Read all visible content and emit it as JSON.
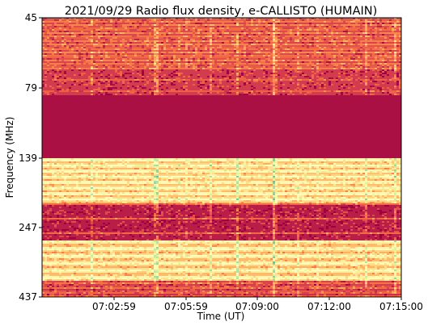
{
  "chart_data": {
    "type": "heatmap",
    "title": "2021/09/29  Radio flux density, e-CALLISTO (HUMAIN)",
    "xlabel": "Time (UT)",
    "ylabel": "Frequency (MHz)",
    "x_ticks": [
      "07:02:59",
      "07:05:59",
      "07:09:00",
      "07:12:00",
      "07:15:00"
    ],
    "x_range": [
      "07:00:00",
      "07:15:00"
    ],
    "y_ticks": [
      45,
      79,
      139,
      247,
      437
    ],
    "y_range": [
      45,
      437
    ],
    "y_scale": "nonlinear (frequency increases downward)",
    "colormap": "Spectral",
    "colormap_stops": [
      "#9e0142",
      "#d53e4f",
      "#f46d43",
      "#fdae61",
      "#fee08b",
      "#ffffbf",
      "#e6f598",
      "#abdda4",
      "#66c2a5"
    ],
    "bands": [
      {
        "from": 45,
        "to": 79,
        "description": "mixed red/orange noise with bright spots"
      },
      {
        "from": 79,
        "to": 100,
        "description": "mostly deep red with thin lighter stripes"
      },
      {
        "from": 100,
        "to": 128,
        "description": "uniform deep red"
      },
      {
        "from": 128,
        "to": 139,
        "description": "deep red"
      },
      {
        "from": 139,
        "to": 185,
        "description": "bright yellow/pale with scattered green"
      },
      {
        "from": 185,
        "to": 247,
        "description": "deep red with thin lines"
      },
      {
        "from": 247,
        "to": 400,
        "description": "bright yellow/pale with green speckles"
      },
      {
        "from": 400,
        "to": 437,
        "description": "mixed red/orange"
      }
    ],
    "grid": false
  }
}
